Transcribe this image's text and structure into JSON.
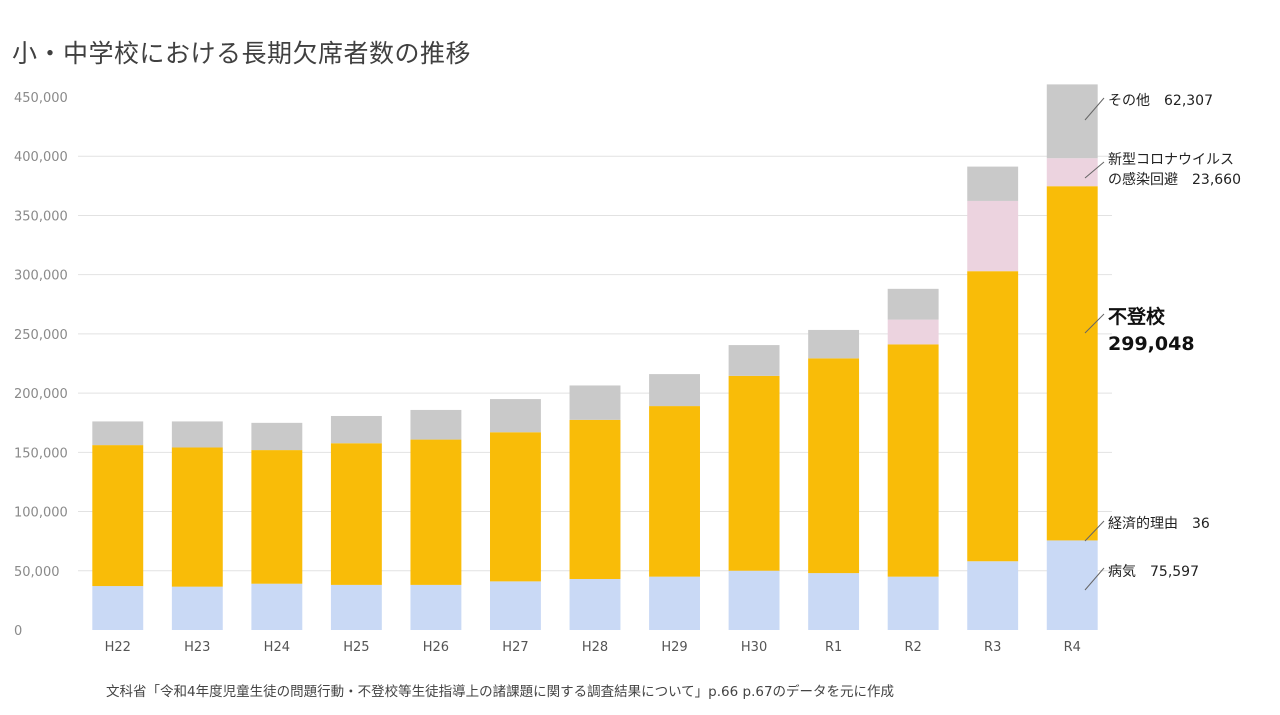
{
  "title": "小・中学校における長期欠席者数の推移",
  "source": "文科省「令和4年度児童生徒の問題行動・不登校等生徒指導上の諸課題に関する調査結果について」p.66 p.67のデータを元に作成",
  "chart_data": {
    "type": "bar",
    "stacked": true,
    "title": "小・中学校における長期欠席者数の推移",
    "categories": [
      "H22",
      "H23",
      "H24",
      "H25",
      "H26",
      "H27",
      "H28",
      "H29",
      "H30",
      "R1",
      "R2",
      "R3",
      "R4"
    ],
    "ylim": [
      0,
      450000
    ],
    "y_ticks": [
      "0",
      "50,000",
      "100,000",
      "150,000",
      "200,000",
      "250,000",
      "300,000",
      "350,000",
      "400,000",
      "450,000"
    ],
    "grid": true,
    "series": [
      {
        "name": "病気",
        "color": "#c9d9f5",
        "values": [
          37000,
          36500,
          39000,
          38000,
          38000,
          41000,
          43000,
          45000,
          50000,
          48000,
          45000,
          58000,
          75597
        ]
      },
      {
        "name": "経済的理由",
        "color": "#9bb8e8",
        "values": [
          100,
          100,
          90,
          80,
          80,
          60,
          50,
          50,
          50,
          40,
          40,
          40,
          36
        ]
      },
      {
        "name": "不登校",
        "color": "#f9bc08",
        "values": [
          119000,
          117500,
          112800,
          119600,
          122700,
          125900,
          134400,
          144000,
          164500,
          181300,
          196100,
          244900,
          299048
        ]
      },
      {
        "name": "新型コロナウイルスの感染回避",
        "color": "#ecd3df",
        "values": [
          0,
          0,
          0,
          0,
          0,
          0,
          0,
          0,
          0,
          0,
          20900,
          59300,
          23660
        ]
      },
      {
        "name": "その他",
        "color": "#c9c9c9",
        "values": [
          20000,
          22000,
          23000,
          23000,
          25000,
          28000,
          29000,
          27000,
          26000,
          24000,
          26000,
          29000,
          62307
        ]
      }
    ],
    "annotations": {
      "other_line": "その他　62,307",
      "covid_line1": "新型コロナウイルス",
      "covid_line2": "の感染回避　23,660",
      "futoko_line1": "不登校",
      "futoko_line2": "299,048",
      "economic_line": "経済的理由　36",
      "illness_line": "病気　75,597"
    }
  }
}
